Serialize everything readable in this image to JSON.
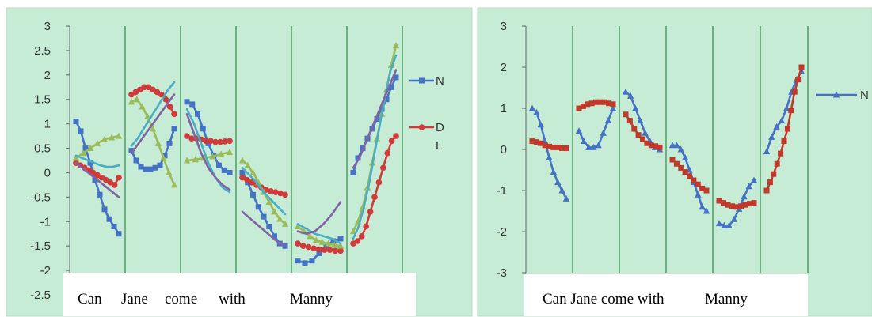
{
  "chart_data": [
    {
      "type": "line",
      "ylim": [
        -2.5,
        3
      ],
      "yticks": [
        "3",
        "2.5",
        "2",
        "1.5",
        "1",
        "0.5",
        "0",
        "-0.5",
        "-1",
        "-1.5",
        "-2",
        "-2.5"
      ],
      "words": [
        "Can",
        "Jane",
        "come",
        "with",
        "Manny"
      ],
      "grid": "vertical lines at word boundaries",
      "background": "#c6ecd6",
      "legend_position": "right",
      "legend": [
        {
          "label": "N",
          "color": "#4472c4",
          "marker": "square"
        },
        {
          "label": "D",
          "color": "#d13a3a",
          "marker": "circle"
        },
        {
          "label": "L",
          "color": "#4bacc6",
          "marker": "none"
        }
      ],
      "series": [
        {
          "color": "#4472c4",
          "marker": "square",
          "segments": [
            {
              "seg": 0,
              "values": [
                1.05,
                0.85,
                0.5,
                0.2,
                -0.15,
                -0.45,
                -0.75,
                -0.95,
                -1.1,
                -1.25
              ]
            },
            {
              "seg": 1,
              "values": [
                0.45,
                0.25,
                0.12,
                0.07,
                0.07,
                0.1,
                0.15,
                0.35,
                0.6,
                0.9
              ]
            },
            {
              "seg": 2,
              "values": [
                1.45,
                1.4,
                1.2,
                0.9,
                0.6,
                0.35,
                0.15,
                0.05,
                0.0
              ]
            },
            {
              "seg": 3,
              "values": [
                0.0,
                -0.2,
                -0.45,
                -0.7,
                -0.9,
                -1.1,
                -1.3,
                -1.45,
                -1.5
              ]
            },
            {
              "seg": 4,
              "values": [
                -1.8,
                -1.85,
                -1.8,
                -1.65,
                -1.5,
                -1.4,
                -1.35
              ]
            },
            {
              "seg": 5,
              "values": [
                0.0,
                0.3,
                0.5,
                0.7,
                0.9,
                1.1,
                1.3,
                1.5,
                1.75,
                1.95
              ]
            }
          ]
        },
        {
          "color": "#d13a3a",
          "marker": "circle",
          "segments": [
            {
              "seg": 0,
              "values": [
                0.2,
                0.15,
                0.1,
                0.05,
                0.0,
                -0.05,
                -0.1,
                -0.15,
                -0.2,
                -0.25,
                -0.1
              ]
            },
            {
              "seg": 1,
              "values": [
                1.6,
                1.65,
                1.7,
                1.75,
                1.75,
                1.7,
                1.65,
                1.6,
                1.5,
                1.35,
                1.2
              ]
            },
            {
              "seg": 2,
              "values": [
                0.75,
                0.7,
                0.7,
                0.68,
                0.65,
                0.65,
                0.63,
                0.63,
                0.64,
                0.65
              ]
            },
            {
              "seg": 3,
              "values": [
                -0.1,
                -0.15,
                -0.2,
                -0.25,
                -0.3,
                -0.35,
                -0.38,
                -0.4,
                -0.42,
                -0.45
              ]
            },
            {
              "seg": 4,
              "values": [
                -1.45,
                -1.5,
                -1.52,
                -1.55,
                -1.57,
                -1.58,
                -1.58,
                -1.6,
                -1.6
              ]
            },
            {
              "seg": 5,
              "values": [
                -1.45,
                -1.4,
                -1.3,
                -1.1,
                -0.8,
                -0.5,
                -0.2,
                0.1,
                0.4,
                0.65,
                0.75
              ]
            }
          ]
        },
        {
          "color": "#9bbb59",
          "marker": "triangle",
          "segments": [
            {
              "seg": 0,
              "values": [
                0.3,
                0.4,
                0.5,
                0.6,
                0.68,
                0.72,
                0.75
              ]
            },
            {
              "seg": 1,
              "values": [
                1.45,
                1.5,
                1.35,
                1.15,
                0.9,
                0.6,
                0.3,
                0.0,
                -0.25
              ]
            },
            {
              "seg": 2,
              "values": [
                0.25,
                0.27,
                0.3,
                0.33,
                0.38,
                0.42
              ]
            },
            {
              "seg": 3,
              "values": [
                0.25,
                0.15,
                0.0,
                -0.2,
                -0.4,
                -0.6,
                -0.8,
                -0.95,
                -1.05
              ]
            },
            {
              "seg": 4,
              "values": [
                -1.1,
                -1.2,
                -1.3,
                -1.38,
                -1.42,
                -1.45,
                -1.48,
                -1.5
              ]
            },
            {
              "seg": 5,
              "values": [
                -1.2,
                -1.0,
                -0.7,
                -0.3,
                0.2,
                0.7,
                1.2,
                1.7,
                2.2,
                2.6
              ]
            }
          ]
        },
        {
          "color": "#4bacc6",
          "marker": "none",
          "segments": [
            {
              "seg": 0,
              "values": [
                0.35,
                0.3,
                0.25,
                0.2,
                0.15,
                0.12,
                0.12,
                0.15
              ]
            },
            {
              "seg": 1,
              "values": [
                0.55,
                0.7,
                0.9,
                1.1,
                1.3,
                1.5,
                1.7,
                1.85
              ]
            },
            {
              "seg": 2,
              "values": [
                1.3,
                1.0,
                0.6,
                0.2,
                -0.1,
                -0.3,
                -0.4
              ]
            },
            {
              "seg": 3,
              "values": [
                0.1,
                -0.05,
                -0.2,
                -0.4,
                -0.55,
                -0.7,
                -0.85
              ]
            },
            {
              "seg": 4,
              "values": [
                -1.05,
                -1.15,
                -1.25,
                -1.3,
                -1.35,
                -1.45
              ]
            },
            {
              "seg": 5,
              "values": [
                -1.35,
                -1.1,
                -0.7,
                -0.2,
                0.4,
                1.0,
                1.6,
                2.1,
                2.4
              ]
            }
          ]
        },
        {
          "color": "#8064a2",
          "marker": "none",
          "segments": [
            {
              "seg": 0,
              "values": [
                0.2,
                0.1,
                0.0,
                -0.1,
                -0.2,
                -0.3,
                -0.4,
                -0.5
              ]
            },
            {
              "seg": 1,
              "values": [
                0.4,
                0.6,
                0.8,
                1.0,
                1.2,
                1.4,
                1.6
              ]
            },
            {
              "seg": 2,
              "values": [
                1.2,
                0.8,
                0.4,
                0.1,
                -0.1,
                -0.25,
                -0.35
              ]
            },
            {
              "seg": 3,
              "values": [
                -0.8,
                -0.95,
                -1.1,
                -1.25,
                -1.4,
                -1.5
              ]
            },
            {
              "seg": 4,
              "values": [
                -1.2,
                -1.25,
                -1.2,
                -1.05,
                -0.85,
                -0.6
              ]
            },
            {
              "seg": 5,
              "values": [
                0.1,
                0.3,
                0.6,
                0.9,
                1.2,
                1.5,
                1.8,
                2.1
              ]
            }
          ]
        }
      ]
    },
    {
      "type": "line",
      "ylim": [
        -3,
        3
      ],
      "yticks": [
        "3",
        "2",
        "1",
        "0",
        "-1",
        "-2",
        "-3"
      ],
      "words": [
        "Can Jane come with",
        "Manny"
      ],
      "grid": "vertical lines at word boundaries",
      "background": "#c6ecd6",
      "legend_position": "right",
      "legend": [
        {
          "label": "N",
          "color": "#4472c4",
          "marker": "triangle"
        }
      ],
      "series": [
        {
          "color": "#4472c4",
          "marker": "triangle",
          "segments": [
            {
              "seg": 0,
              "values": [
                1.0,
                0.9,
                0.6,
                0.2,
                -0.2,
                -0.55,
                -0.8,
                -1.0,
                -1.2
              ]
            },
            {
              "seg": 1,
              "values": [
                0.45,
                0.2,
                0.05,
                0.05,
                0.1,
                0.4,
                0.7,
                1.0
              ]
            },
            {
              "seg": 2,
              "values": [
                1.4,
                1.3,
                1.0,
                0.7,
                0.4,
                0.2,
                0.05,
                0.0
              ]
            },
            {
              "seg": 3,
              "values": [
                0.1,
                0.1,
                0.0,
                -0.2,
                -0.5,
                -0.8,
                -1.1,
                -1.4,
                -1.5
              ]
            },
            {
              "seg": 4,
              "values": [
                -1.8,
                -1.85,
                -1.85,
                -1.7,
                -1.45,
                -1.15,
                -0.9,
                -0.75
              ]
            },
            {
              "seg": 5,
              "values": [
                -0.05,
                0.3,
                0.55,
                0.7,
                1.0,
                1.4,
                1.7,
                1.9
              ]
            }
          ]
        },
        {
          "color": "#c0392b",
          "marker": "square",
          "segments": [
            {
              "seg": 0,
              "values": [
                0.2,
                0.18,
                0.15,
                0.1,
                0.07,
                0.05,
                0.05,
                0.03,
                0.03
              ]
            },
            {
              "seg": 1,
              "values": [
                1.0,
                1.05,
                1.1,
                1.12,
                1.15,
                1.15,
                1.15,
                1.12,
                1.1
              ]
            },
            {
              "seg": 2,
              "values": [
                0.85,
                0.7,
                0.5,
                0.35,
                0.25,
                0.15,
                0.1,
                0.08,
                0.05
              ]
            },
            {
              "seg": 3,
              "values": [
                -0.25,
                -0.35,
                -0.45,
                -0.55,
                -0.65,
                -0.75,
                -0.85,
                -0.95,
                -1.0
              ]
            },
            {
              "seg": 4,
              "values": [
                -1.25,
                -1.3,
                -1.35,
                -1.38,
                -1.4,
                -1.38,
                -1.35,
                -1.32,
                -1.3
              ]
            },
            {
              "seg": 5,
              "values": [
                -1.0,
                -0.8,
                -0.6,
                -0.35,
                -0.1,
                0.2,
                0.5,
                0.95,
                1.4,
                1.7,
                2.0
              ]
            }
          ]
        }
      ]
    }
  ]
}
